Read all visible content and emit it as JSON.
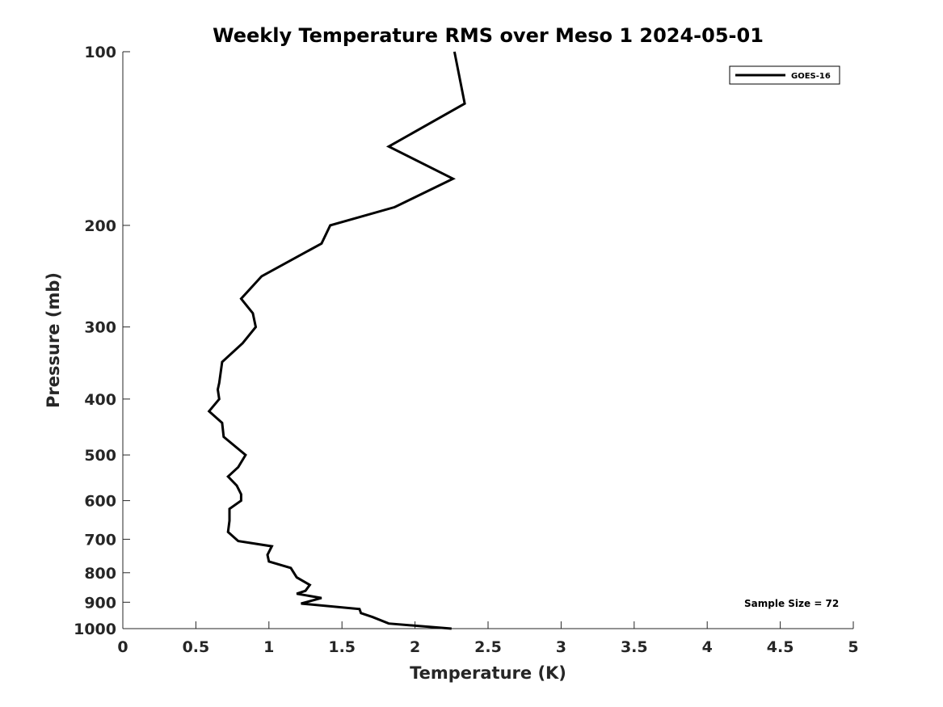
{
  "chart_data": {
    "type": "line",
    "title": "Weekly Temperature RMS over Meso 1 2024-05-01",
    "xlabel": "Temperature (K)",
    "ylabel": "Pressure (mb)",
    "xlim": [
      0,
      5
    ],
    "ylim": [
      100,
      1000
    ],
    "y_scale": "log",
    "y_reversed": true,
    "x_ticks": [
      "0",
      "0.5",
      "1",
      "1.5",
      "2",
      "2.5",
      "3",
      "3.5",
      "4",
      "4.5",
      "5"
    ],
    "x_tick_values": [
      0,
      0.5,
      1,
      1.5,
      2,
      2.5,
      3,
      3.5,
      4,
      4.5,
      5
    ],
    "y_ticks": [
      "100",
      "200",
      "300",
      "400",
      "500",
      "600",
      "700",
      "800",
      "900",
      "1000"
    ],
    "y_tick_values": [
      100,
      200,
      300,
      400,
      500,
      600,
      700,
      800,
      900,
      1000
    ],
    "grid": false,
    "legend_position": "top-right",
    "annotation": "Sample Size = 72",
    "series": [
      {
        "name": "GOES-16",
        "color": "#000000",
        "points": [
          [
            2.27,
            100
          ],
          [
            2.34,
            123
          ],
          [
            1.82,
            146
          ],
          [
            2.26,
            166
          ],
          [
            1.86,
            186
          ],
          [
            1.42,
            200
          ],
          [
            1.36,
            215
          ],
          [
            0.95,
            245
          ],
          [
            0.81,
            268
          ],
          [
            0.89,
            284
          ],
          [
            0.91,
            300
          ],
          [
            0.82,
            320
          ],
          [
            0.68,
            345
          ],
          [
            0.66,
            375
          ],
          [
            0.65,
            385
          ],
          [
            0.66,
            400
          ],
          [
            0.59,
            420
          ],
          [
            0.68,
            440
          ],
          [
            0.69,
            465
          ],
          [
            0.84,
            500
          ],
          [
            0.79,
            525
          ],
          [
            0.72,
            545
          ],
          [
            0.78,
            565
          ],
          [
            0.81,
            585
          ],
          [
            0.81,
            600
          ],
          [
            0.73,
            620
          ],
          [
            0.73,
            650
          ],
          [
            0.72,
            680
          ],
          [
            0.79,
            705
          ],
          [
            1.02,
            720
          ],
          [
            0.99,
            745
          ],
          [
            1.0,
            765
          ],
          [
            1.15,
            785
          ],
          [
            1.19,
            815
          ],
          [
            1.28,
            840
          ],
          [
            1.25,
            860
          ],
          [
            1.19,
            870
          ],
          [
            1.36,
            885
          ],
          [
            1.22,
            905
          ],
          [
            1.62,
            925
          ],
          [
            1.63,
            940
          ],
          [
            1.71,
            955
          ],
          [
            1.82,
            980
          ],
          [
            2.25,
            1000
          ]
        ]
      }
    ]
  }
}
